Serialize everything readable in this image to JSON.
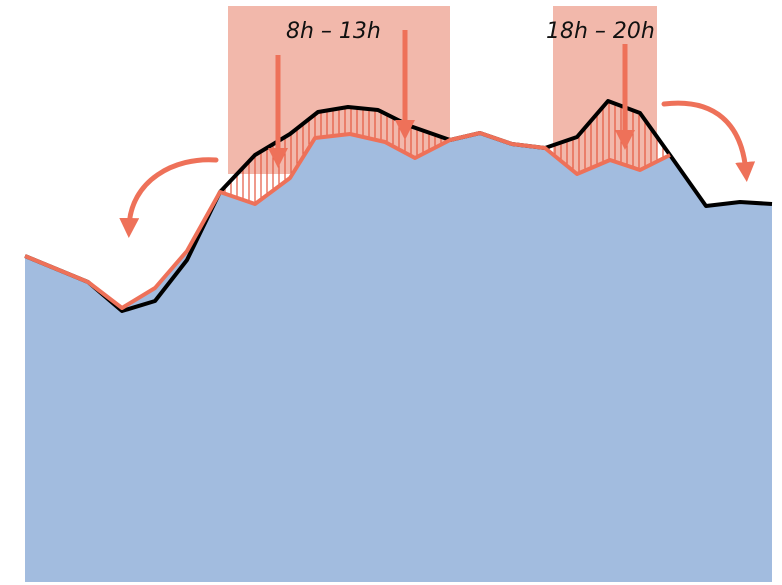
{
  "windows": [
    {
      "label": "8h – 13h"
    },
    {
      "label": "18h – 20h"
    }
  ],
  "colors": {
    "area_fill": "#a2bcdf",
    "window_fill": "#f2b8ab",
    "shifted_line": "#ee7159",
    "original_line": "#000000",
    "hatch": "#e4573e",
    "arrow": "#ee7159",
    "label": "#111111"
  }
}
